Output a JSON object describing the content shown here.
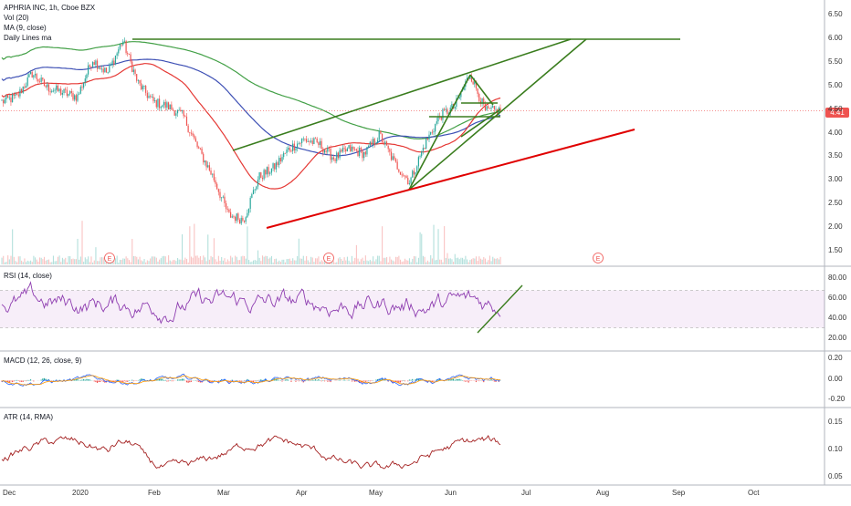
{
  "legend": {
    "title": "APHRIA INC, 1h, Cboe BZX",
    "vol": "Vol (20)",
    "ma": "MA (9, close)",
    "daily": "Daily Lines ma"
  },
  "current_price": "4.41",
  "colors": {
    "price_up": "#26a69a",
    "price_down": "#ef5350",
    "ma_blue": "#3f51b5",
    "ma_red": "#e53935",
    "ma_green": "#43a047",
    "trend_green": "#3a7d1e",
    "trend_red": "#e00000",
    "rsi": "#8e3db0",
    "atr": "#a31f1f",
    "macd": "#2962ff",
    "signal": "#ff9800"
  },
  "chart_data": [
    {
      "type": "line",
      "panel": "price",
      "ylim": [
        1.25,
        6.6
      ],
      "yticks": [
        "6.50",
        "6.00",
        "5.50",
        "5.00",
        "4.50",
        "4.00",
        "3.50",
        "3.00",
        "2.50",
        "2.00",
        "1.50"
      ],
      "xticks": [
        "Dec",
        "2020",
        "Feb",
        "Mar",
        "Apr",
        "May",
        "Jun",
        "Jul",
        "Aug",
        "Sep",
        "Oct"
      ],
      "earnings_markers": [
        "E",
        "E",
        "E"
      ],
      "series": [
        {
          "values": [
            4.6,
            4.7,
            5.2,
            4.9,
            4.8,
            4.7,
            5.5,
            5.2,
            5.9,
            5.0,
            4.6,
            4.5,
            4.3,
            3.6,
            3.0,
            2.2,
            2.1,
            3.0,
            3.2,
            3.6,
            3.8,
            3.7,
            3.4,
            3.6,
            3.5,
            3.9,
            3.3,
            2.9,
            3.7,
            4.3,
            4.5,
            5.2,
            4.4,
            4.41
          ]
        }
      ]
    },
    {
      "type": "line",
      "panel": "rsi",
      "title": "RSI (14, close)",
      "ylim": [
        10,
        90
      ],
      "yticks": [
        "80.00",
        "60.00",
        "40.00",
        "20.00"
      ],
      "bands": [
        70,
        30
      ]
    },
    {
      "type": "line",
      "panel": "macd",
      "title": "MACD (12, 26, close, 9)",
      "yticks": [
        "0.20",
        "0.00",
        "-0.20"
      ]
    },
    {
      "type": "line",
      "panel": "atr",
      "title": "ATR (14, RMA)",
      "yticks": [
        "0.15",
        "0.10",
        "0.05"
      ]
    }
  ]
}
